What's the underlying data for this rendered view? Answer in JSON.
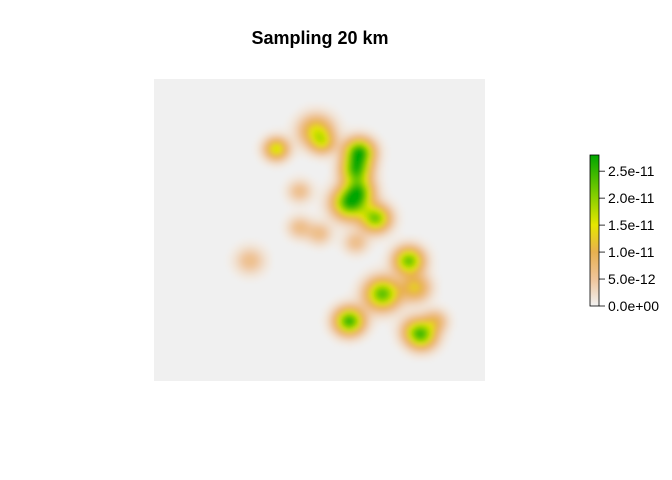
{
  "chart_data": {
    "type": "heatmap",
    "title": "Sampling 20 km",
    "xlabel": "",
    "ylabel": "",
    "axes_visible": false,
    "background_value": 0.0,
    "background_color": "#f0f0f0",
    "color_scale": {
      "min": 0.0,
      "max": 2.8e-11,
      "stops": [
        {
          "value": 0.0,
          "color": "#f2f2f2"
        },
        {
          "value": 5e-12,
          "color": "#efc49a"
        },
        {
          "value": 1e-11,
          "color": "#e8b050"
        },
        {
          "value": 1.5e-11,
          "color": "#e6e600"
        },
        {
          "value": 2e-11,
          "color": "#8cd000"
        },
        {
          "value": 2.8e-11,
          "color": "#00a600"
        }
      ]
    },
    "legend": {
      "placement": "right",
      "tick_values": [
        0.0,
        5e-12,
        1e-11,
        1.5e-11,
        2e-11,
        2.5e-11
      ],
      "tick_labels": [
        "0.0e+00",
        "5.0e-12",
        "1.0e-11",
        "1.5e-11",
        "2.0e-11",
        "2.5e-11"
      ]
    },
    "density_hotspots": [
      {
        "x": 0.37,
        "y": 0.77,
        "peak": 1.6e-11,
        "spread": 0.025
      },
      {
        "x": 0.49,
        "y": 0.83,
        "peak": 1.4e-11,
        "spread": 0.035
      },
      {
        "x": 0.51,
        "y": 0.79,
        "peak": 1e-11,
        "spread": 0.025
      },
      {
        "x": 0.62,
        "y": 0.76,
        "peak": 2.6e-11,
        "spread": 0.03
      },
      {
        "x": 0.61,
        "y": 0.7,
        "peak": 2.2e-11,
        "spread": 0.03
      },
      {
        "x": 0.59,
        "y": 0.59,
        "peak": 2.4e-11,
        "spread": 0.035
      },
      {
        "x": 0.62,
        "y": 0.63,
        "peak": 1.8e-11,
        "spread": 0.03
      },
      {
        "x": 0.67,
        "y": 0.54,
        "peak": 2.1e-11,
        "spread": 0.03
      },
      {
        "x": 0.44,
        "y": 0.63,
        "peak": 6e-12,
        "spread": 0.025
      },
      {
        "x": 0.44,
        "y": 0.51,
        "peak": 6e-12,
        "spread": 0.025
      },
      {
        "x": 0.5,
        "y": 0.49,
        "peak": 6e-12,
        "spread": 0.025
      },
      {
        "x": 0.61,
        "y": 0.46,
        "peak": 6e-12,
        "spread": 0.025
      },
      {
        "x": 0.29,
        "y": 0.4,
        "peak": 6e-12,
        "spread": 0.03
      },
      {
        "x": 0.77,
        "y": 0.4,
        "peak": 2.2e-11,
        "spread": 0.03
      },
      {
        "x": 0.79,
        "y": 0.31,
        "peak": 1.2e-11,
        "spread": 0.03
      },
      {
        "x": 0.69,
        "y": 0.29,
        "peak": 2.3e-11,
        "spread": 0.035
      },
      {
        "x": 0.59,
        "y": 0.2,
        "peak": 2.5e-11,
        "spread": 0.03
      },
      {
        "x": 0.79,
        "y": 0.17,
        "peak": 1e-11,
        "spread": 0.03
      },
      {
        "x": 0.81,
        "y": 0.15,
        "peak": 1.7e-11,
        "spread": 0.03
      },
      {
        "x": 0.85,
        "y": 0.2,
        "peak": 8e-12,
        "spread": 0.025
      }
    ]
  }
}
